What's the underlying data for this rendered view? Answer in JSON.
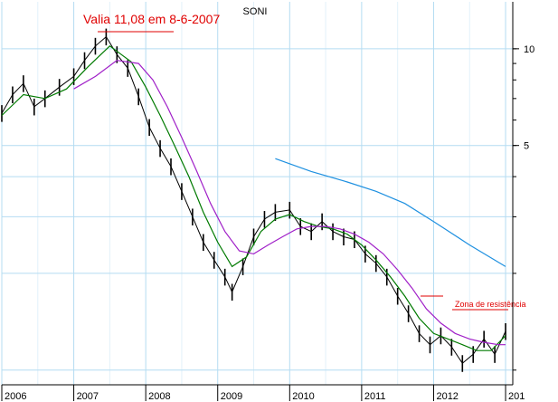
{
  "chart_data": {
    "type": "line",
    "title": "SONI",
    "y_scale": "log",
    "y_tick_labels": [
      "10",
      "5"
    ],
    "y_ticks": [
      10,
      5
    ],
    "x_tick_labels": [
      "2006",
      "2007",
      "2008",
      "2009",
      "2010",
      "2011",
      "2012",
      "201"
    ],
    "x_range": [
      2006.0,
      2013.1
    ],
    "y_range": [
      0.9,
      14.0
    ],
    "grid": true,
    "annotations": [
      {
        "text": "Valia 11,08 em 8-6-2007",
        "x": 2007.45,
        "y": 11.08,
        "color": "#e00000"
      },
      {
        "text": "Zona de resistência",
        "x": 2012.55,
        "y": 1.55,
        "color": "#e00000"
      }
    ],
    "series": [
      {
        "style": "price-bars",
        "color": "#000000",
        "x": [
          2006.0,
          2006.15,
          2006.3,
          2006.45,
          2006.6,
          2006.8,
          2007.0,
          2007.15,
          2007.3,
          2007.45,
          2007.6,
          2007.75,
          2007.9,
          2008.05,
          2008.2,
          2008.35,
          2008.5,
          2008.65,
          2008.8,
          2008.95,
          2009.1,
          2009.2,
          2009.35,
          2009.5,
          2009.65,
          2009.8,
          2010.0,
          2010.15,
          2010.3,
          2010.45,
          2010.6,
          2010.75,
          2010.9,
          2011.05,
          2011.2,
          2011.35,
          2011.5,
          2011.65,
          2011.8,
          2011.95,
          2012.1,
          2012.25,
          2012.4,
          2012.55,
          2012.7,
          2012.85,
          2013.0
        ],
        "values": [
          6.3,
          7.2,
          7.8,
          6.6,
          7.0,
          7.6,
          8.2,
          9.2,
          10.2,
          10.9,
          9.6,
          8.7,
          7.1,
          5.7,
          4.9,
          4.3,
          3.6,
          3.0,
          2.5,
          2.2,
          1.95,
          1.75,
          2.1,
          2.6,
          2.95,
          3.1,
          3.15,
          2.8,
          2.7,
          2.9,
          2.7,
          2.6,
          2.55,
          2.3,
          2.15,
          1.95,
          1.7,
          1.5,
          1.3,
          1.2,
          1.28,
          1.18,
          1.05,
          1.12,
          1.25,
          1.12,
          1.32
        ]
      },
      {
        "style": "line",
        "color": "#007a00",
        "x": [
          2006.0,
          2006.3,
          2006.6,
          2006.9,
          2007.2,
          2007.5,
          2007.8,
          2008.0,
          2008.2,
          2008.4,
          2008.6,
          2008.8,
          2009.0,
          2009.2,
          2009.4,
          2009.6,
          2009.8,
          2010.0,
          2010.2,
          2010.4,
          2010.6,
          2010.8,
          2011.0,
          2011.2,
          2011.4,
          2011.6,
          2011.8,
          2012.0,
          2012.2,
          2012.4,
          2012.6,
          2012.8,
          2013.0
        ],
        "values": [
          6.2,
          7.2,
          7.0,
          7.5,
          8.8,
          10.2,
          9.1,
          7.6,
          6.2,
          5.0,
          4.0,
          3.1,
          2.5,
          2.1,
          2.25,
          2.7,
          2.95,
          3.05,
          2.9,
          2.8,
          2.75,
          2.65,
          2.45,
          2.2,
          1.95,
          1.7,
          1.45,
          1.3,
          1.25,
          1.2,
          1.15,
          1.15,
          1.28
        ]
      },
      {
        "style": "line",
        "color": "#a020c8",
        "x": [
          2007.0,
          2007.3,
          2007.6,
          2007.9,
          2008.1,
          2008.3,
          2008.5,
          2008.7,
          2008.9,
          2009.1,
          2009.3,
          2009.5,
          2009.7,
          2009.9,
          2010.1,
          2010.3,
          2010.5,
          2010.7,
          2010.9,
          2011.1,
          2011.3,
          2011.5,
          2011.7,
          2011.9,
          2012.1,
          2012.3,
          2012.5,
          2012.7,
          2012.9,
          2013.0
        ],
        "values": [
          7.5,
          8.2,
          9.2,
          9.0,
          8.0,
          6.6,
          5.3,
          4.2,
          3.3,
          2.7,
          2.35,
          2.3,
          2.45,
          2.6,
          2.75,
          2.8,
          2.8,
          2.75,
          2.65,
          2.5,
          2.3,
          2.05,
          1.8,
          1.55,
          1.4,
          1.3,
          1.25,
          1.22,
          1.2,
          1.2
        ]
      },
      {
        "style": "line",
        "color": "#1e90e0",
        "x": [
          2009.8,
          2010.3,
          2010.8,
          2011.2,
          2011.6,
          2012.0,
          2012.5,
          2013.0
        ],
        "values": [
          4.55,
          4.15,
          3.85,
          3.6,
          3.3,
          2.9,
          2.45,
          2.1
        ]
      }
    ]
  }
}
